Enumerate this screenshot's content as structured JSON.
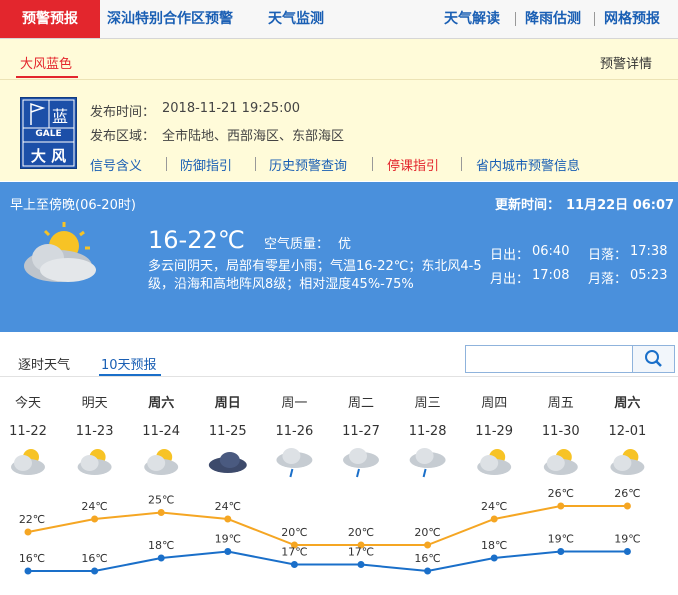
{
  "nav": {
    "active": "预警预报",
    "left": [
      "深汕特别合作区预警",
      "天气监测"
    ],
    "right": [
      "天气解读",
      "降雨估测",
      "网格预报"
    ]
  },
  "warning": {
    "tab": "大风蓝色",
    "detail_link": "预警详情",
    "icon_level": "蓝",
    "icon_en": "GALE",
    "icon_name": "大 风",
    "time_label": "发布时间：",
    "time": "2018-11-21 19:25:00",
    "area_label": "发布区域：",
    "area": "全市陆地、西部海区、东部海区",
    "links": [
      "信号含义",
      "防御指引",
      "历史预警查询",
      "停课指引",
      "省内城市预警信息"
    ]
  },
  "today": {
    "period": "早上至傍晚(06-20时)",
    "update_label": "更新时间：",
    "update": "11月22日 06:07",
    "temp": "16-22℃",
    "aqi_label": "空气质量：",
    "aqi": "优",
    "desc": "多云间阴天，局部有零星小雨；气温16-22℃；东北风4-5级，沿海和高地阵风8级；相对湿度45%-75%",
    "sunrise_label": "日出：",
    "sunrise": "06:40",
    "sunset_label": "日落：",
    "sunset": "17:38",
    "moonrise_label": "月出：",
    "moonrise": "17:08",
    "moonset_label": "月落：",
    "moonset": "05:23"
  },
  "tabs": [
    "逐时天气",
    "10天预报"
  ],
  "forecast": {
    "days": [
      {
        "name": "今天",
        "date": "11-22",
        "icon": "sun-cloud",
        "high": 22,
        "high_label": "22℃",
        "low": 16,
        "low_label": "16℃",
        "bold": false
      },
      {
        "name": "明天",
        "date": "11-23",
        "icon": "sun-cloud",
        "high": 24,
        "high_label": "24℃",
        "low": 16,
        "low_label": "16℃",
        "bold": false
      },
      {
        "name": "周六",
        "date": "11-24",
        "icon": "sun-cloud",
        "high": 25,
        "high_label": "25℃",
        "low": 18,
        "low_label": "18℃",
        "bold": true
      },
      {
        "name": "周日",
        "date": "11-25",
        "icon": "cloud",
        "high": 24,
        "high_label": "24℃",
        "low": 19,
        "low_label": "19℃",
        "bold": true
      },
      {
        "name": "周一",
        "date": "11-26",
        "icon": "rain",
        "high": 20,
        "high_label": "20℃",
        "low": 17,
        "low_label": "17℃",
        "bold": false
      },
      {
        "name": "周二",
        "date": "11-27",
        "icon": "rain",
        "high": 20,
        "high_label": "20℃",
        "low": 17,
        "low_label": "17℃",
        "bold": false
      },
      {
        "name": "周三",
        "date": "11-28",
        "icon": "rain",
        "high": 20,
        "high_label": "20℃",
        "low": 16,
        "low_label": "16℃",
        "bold": false
      },
      {
        "name": "周四",
        "date": "11-29",
        "icon": "sun-cloud",
        "high": 24,
        "high_label": "24℃",
        "low": 18,
        "low_label": "18℃",
        "bold": false
      },
      {
        "name": "周五",
        "date": "11-30",
        "icon": "sun-cloud",
        "high": 26,
        "high_label": "26℃",
        "low": 19,
        "low_label": "19℃",
        "bold": false
      },
      {
        "name": "周六",
        "date": "12-01",
        "icon": "sun-cloud",
        "high": 26,
        "high_label": "26℃",
        "low": 19,
        "low_label": "19℃",
        "bold": true
      }
    ],
    "high_color": "#f5a623",
    "low_color": "#1a6fc9"
  }
}
